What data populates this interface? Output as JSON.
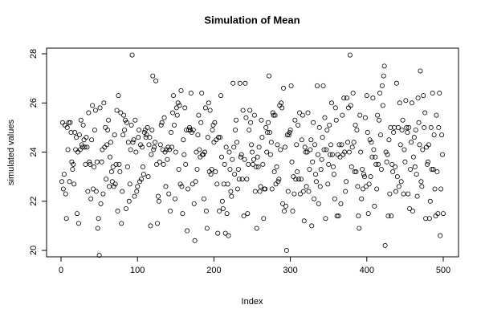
{
  "chart_data": {
    "type": "scatter",
    "title": "Simulation of Mean",
    "x_label": "Index",
    "y_label": "simulated values",
    "xlim": [
      -18.96,
      519.96
    ],
    "ylim": [
      19.74,
      28.23
    ],
    "xticks": [
      0,
      100,
      200,
      300,
      400,
      500
    ],
    "yticks": [
      20,
      22,
      24,
      26,
      28
    ],
    "color": "#000000",
    "x": [
      1,
      2,
      3,
      4,
      5,
      6,
      7,
      8,
      9,
      10,
      11,
      12,
      13,
      14,
      15,
      16,
      17,
      18,
      19,
      20,
      21,
      22,
      23,
      24,
      25,
      26,
      27,
      28,
      29,
      30,
      31,
      32,
      33,
      34,
      35,
      36,
      37,
      38,
      39,
      40,
      41,
      42,
      43,
      44,
      45,
      46,
      47,
      48,
      49,
      50,
      51,
      52,
      53,
      54,
      55,
      56,
      57,
      58,
      59,
      60,
      61,
      62,
      63,
      64,
      65,
      66,
      67,
      68,
      69,
      70,
      71,
      72,
      73,
      74,
      75,
      76,
      77,
      78,
      79,
      80,
      81,
      82,
      83,
      84,
      85,
      86,
      87,
      88,
      89,
      90,
      91,
      92,
      93,
      94,
      95,
      96,
      97,
      98,
      99,
      100,
      101,
      102,
      103,
      104,
      105,
      106,
      107,
      108,
      109,
      110,
      111,
      112,
      113,
      114,
      115,
      116,
      117,
      118,
      119,
      120,
      121,
      122,
      123,
      124,
      125,
      126,
      127,
      128,
      129,
      130,
      131,
      132,
      133,
      134,
      135,
      136,
      137,
      138,
      139,
      140,
      141,
      142,
      143,
      144,
      145,
      146,
      147,
      148,
      149,
      150,
      151,
      152,
      153,
      154,
      155,
      156,
      157,
      158,
      159,
      160,
      161,
      162,
      163,
      164,
      165,
      166,
      167,
      168,
      169,
      170,
      171,
      172,
      173,
      174,
      175,
      176,
      177,
      178,
      179,
      180,
      181,
      182,
      183,
      184,
      185,
      186,
      187,
      188,
      189,
      190,
      191,
      192,
      193,
      194,
      195,
      196,
      197,
      198,
      199,
      200,
      201,
      202,
      203,
      204,
      205,
      206,
      207,
      208,
      209,
      210,
      211,
      212,
      213,
      214,
      215,
      216,
      217,
      218,
      219,
      220,
      221,
      222,
      223,
      224,
      225,
      226,
      227,
      228,
      229,
      230,
      231,
      232,
      233,
      234,
      235,
      236,
      237,
      238,
      239,
      240,
      241,
      242,
      243,
      244,
      245,
      246,
      247,
      248,
      249,
      250,
      251,
      252,
      253,
      254,
      255,
      256,
      257,
      258,
      259,
      260,
      261,
      262,
      263,
      264,
      265,
      266,
      267,
      268,
      269,
      270,
      271,
      272,
      273,
      274,
      275,
      276,
      277,
      278,
      279,
      280,
      281,
      282,
      283,
      284,
      285,
      286,
      287,
      288,
      289,
      290,
      291,
      292,
      293,
      294,
      295,
      296,
      297,
      298,
      299,
      300,
      301,
      302,
      303,
      304,
      305,
      306,
      307,
      308,
      309,
      310,
      311,
      312,
      313,
      314,
      315,
      316,
      317,
      318,
      319,
      320,
      321,
      322,
      323,
      324,
      325,
      326,
      327,
      328,
      329,
      330,
      331,
      332,
      333,
      334,
      335,
      336,
      337,
      338,
      339,
      340,
      341,
      342,
      343,
      344,
      345,
      346,
      347,
      348,
      349,
      350,
      351,
      352,
      353,
      354,
      355,
      356,
      357,
      358,
      359,
      360,
      361,
      362,
      363,
      364,
      365,
      366,
      367,
      368,
      369,
      370,
      371,
      372,
      373,
      374,
      375,
      376,
      377,
      378,
      379,
      380,
      381,
      382,
      383,
      384,
      385,
      386,
      387,
      388,
      389,
      390,
      391,
      392,
      393,
      394,
      395,
      396,
      397,
      398,
      399,
      400,
      401,
      402,
      403,
      404,
      405,
      406,
      407,
      408,
      409,
      410,
      411,
      412,
      413,
      414,
      415,
      416,
      417,
      418,
      419,
      420,
      421,
      422,
      423,
      424,
      425,
      426,
      427,
      428,
      429,
      430,
      431,
      432,
      433,
      434,
      435,
      436,
      437,
      438,
      439,
      440,
      441,
      442,
      443,
      444,
      445,
      446,
      447,
      448,
      449,
      450,
      451,
      452,
      453,
      454,
      455,
      456,
      457,
      458,
      459,
      460,
      461,
      462,
      463,
      464,
      465,
      466,
      467,
      468,
      469,
      470,
      471,
      472,
      473,
      474,
      475,
      476,
      477,
      478,
      479,
      480,
      481,
      482,
      483,
      484,
      485,
      486,
      487,
      488,
      489,
      490,
      491,
      492,
      493,
      494,
      495,
      496,
      497,
      498,
      499,
      500
    ],
    "values": [
      22.8,
      25.2,
      22.5,
      23.1,
      25.1,
      22.3,
      21.3,
      25.0,
      24.1,
      25.2,
      22.8,
      25.2,
      24.8,
      23.6,
      23.3,
      23.5,
      22.7,
      24.8,
      24.1,
      24.6,
      21.5,
      24.0,
      21.1,
      24.7,
      24.1,
      25.3,
      24.3,
      24.2,
      25.1,
      24.5,
      24.2,
      23.5,
      24.6,
      24.2,
      22.4,
      25.6,
      23.6,
      23.5,
      22.1,
      24.5,
      25.9,
      22.5,
      23.4,
      24.9,
      25.7,
      22.4,
      23.6,
      20.9,
      21.3,
      19.8,
      25.8,
      21.9,
      23.6,
      24.1,
      22.3,
      26.0,
      24.2,
      25.0,
      22.9,
      24.3,
      24.9,
      25.3,
      22.6,
      23.8,
      24.4,
      23.2,
      22.8,
      23.4,
      22.6,
      24.7,
      22.7,
      23.5,
      25.7,
      21.6,
      26.3,
      23.5,
      23.2,
      25.6,
      21.1,
      22.4,
      24.7,
      25.5,
      24.9,
      25.3,
      21.7,
      25.2,
      23.4,
      24.4,
      22.0,
      22.7,
      24.1,
      25.1,
      27.95,
      24.4,
      24.5,
      22.2,
      25.3,
      24.0,
      22.4,
      22.6,
      24.6,
      24.9,
      22.8,
      24.3,
      22.9,
      24.2,
      23.4,
      23.1,
      24.8,
      24.9,
      24.6,
      24.7,
      25.0,
      23.0,
      24.3,
      24.6,
      21.0,
      23.9,
      24.9,
      27.1,
      24.1,
      24.2,
      24.4,
      26.9,
      23.5,
      21.1,
      22.2,
      22.0,
      23.6,
      24.3,
      25.1,
      25.2,
      24.1,
      23.5,
      25.4,
      24.0,
      22.6,
      24.1,
      23.7,
      24.2,
      22.3,
      24.1,
      21.6,
      24.8,
      24.2,
      25.6,
      26.3,
      25.1,
      22.1,
      24.0,
      25.8,
      25.5,
      26.0,
      23.3,
      25.9,
      22.7,
      26.5,
      22.6,
      21.5,
      24.5,
      23.9,
      25.8,
      23.5,
      24.9,
      20.8,
      22.5,
      24.9,
      25.0,
      24.9,
      26.4,
      24.8,
      22.7,
      24.9,
      21.9,
      20.4,
      22.8,
      24.0,
      23.3,
      24.7,
      25.5,
      24.1,
      23.8,
      25.2,
      26.4,
      23.9,
      23.9,
      22.1,
      24.0,
      25.8,
      21.6,
      20.9,
      24.6,
      26.0,
      23.2,
      25.7,
      23.1,
      23.3,
      24.9,
      25.1,
      24.4,
      25.2,
      23.2,
      24.5,
      22.7,
      20.7,
      24.6,
      21.6,
      24.6,
      26.3,
      23.8,
      22.0,
      21.7,
      22.7,
      23.5,
      20.7,
      24.2,
      21.5,
      22.7,
      20.6,
      24.0,
      23.3,
      22.4,
      22.2,
      23.7,
      26.8,
      24.2,
      23.1,
      24.9,
      25.3,
      24.4,
      22.5,
      23.3,
      22.9,
      26.8,
      23.8,
      23.9,
      22.9,
      25.7,
      21.4,
      23.7,
      26.8,
      25.4,
      22.9,
      21.5,
      23.5,
      24.9,
      25.7,
      25.2,
      24.3,
      24.0,
      23.5,
      23.7,
      25.5,
      22.4,
      23.4,
      20.9,
      23.8,
      23.4,
      24.2,
      22.4,
      22.6,
      25.3,
      24.6,
      23.5,
      21.3,
      22.5,
      22.5,
      25.0,
      24.0,
      24.8,
      25.2,
      27.1,
      24.8,
      23.9,
      24.4,
      22.5,
      25.6,
      25.5,
      23.2,
      25.5,
      22.7,
      23.4,
      24.3,
      22.8,
      22.9,
      25.9,
      24.1,
      26.0,
      25.8,
      21.9,
      26.6,
      21.6,
      24.2,
      21.8,
      20.0,
      24.7,
      22.4,
      24.7,
      24.8,
      24.9,
      26.7,
      23.6,
      21.6,
      23.0,
      22.3,
      25.3,
      22.9,
      24.3,
      23.2,
      25.1,
      22.9,
      25.6,
      22.3,
      22.9,
      24.5,
      25.5,
      22.4,
      21.2,
      24.2,
      24.0,
      22.6,
      24.0,
      25.6,
      22.4,
      23.3,
      24.1,
      24.5,
      21.0,
      23.6,
      25.2,
      22.1,
      24.3,
      23.1,
      22.8,
      26.7,
      23.9,
      21.9,
      25.0,
      22.6,
      23.3,
      23.7,
      24.6,
      26.7,
      24.1,
      25.4,
      21.3,
      24.1,
      24.9,
      22.7,
      23.5,
      25.1,
      23.9,
      24.3,
      26.0,
      23.9,
      23.4,
      23.1,
      22.1,
      25.8,
      25.3,
      21.4,
      23.9,
      21.4,
      24.3,
      23.8,
      21.9,
      24.3,
      25.5,
      23.9,
      26.2,
      24.0,
      22.4,
      22.8,
      26.2,
      24.4,
      25.8,
      24.0,
      27.95,
      25.9,
      23.4,
      24.2,
      26.4,
      24.4,
      23.2,
      25.1,
      23.2,
      24.9,
      22.6,
      21.4,
      20.9,
      25.5,
      24.0,
      22.1,
      23.3,
      22.5,
      23.1,
      23.0,
      25.4,
      22.6,
      26.3,
      24.8,
      21.5,
      22.7,
      24.5,
      23.0,
      24.4,
      23.8,
      26.2,
      24.1,
      21.8,
      23.8,
      23.5,
      22.5,
      25.5,
      23.5,
      25.3,
      26.4,
      24.7,
      23.3,
      26.7,
      25.9,
      27.1,
      27.5,
      20.2,
      24.0,
      23.6,
      23.9,
      21.4,
      24.5,
      22.3,
      25.0,
      21.4,
      23.5,
      23.2,
      24.8,
      25.0,
      23.4,
      22.4,
      26.8,
      23.0,
      25.0,
      22.6,
      26.0,
      24.3,
      22.8,
      24.9,
      25.3,
      22.3,
      24.1,
      23.6,
      26.1,
      25.0,
      24.8,
      22.3,
      25.0,
      21.7,
      23.3,
      24.4,
      26.0,
      21.6,
      23.8,
      24.6,
      23.4,
      24.9,
      23.1,
      22.2,
      26.2,
      25.2,
      24.3,
      27.3,
      22.8,
      22.6,
      24.1,
      26.3,
      25.0,
      25.6,
      21.3,
      24.2,
      23.5,
      23.6,
      24.3,
      21.3,
      22.0,
      25.0,
      23.3,
      26.4,
      23.3,
      24.7,
      22.5,
      21.4,
      25.5,
      23.2,
      21.5,
      25.0,
      26.4,
      20.6,
      22.5,
      24.7,
      23.9,
      21.5
    ]
  }
}
